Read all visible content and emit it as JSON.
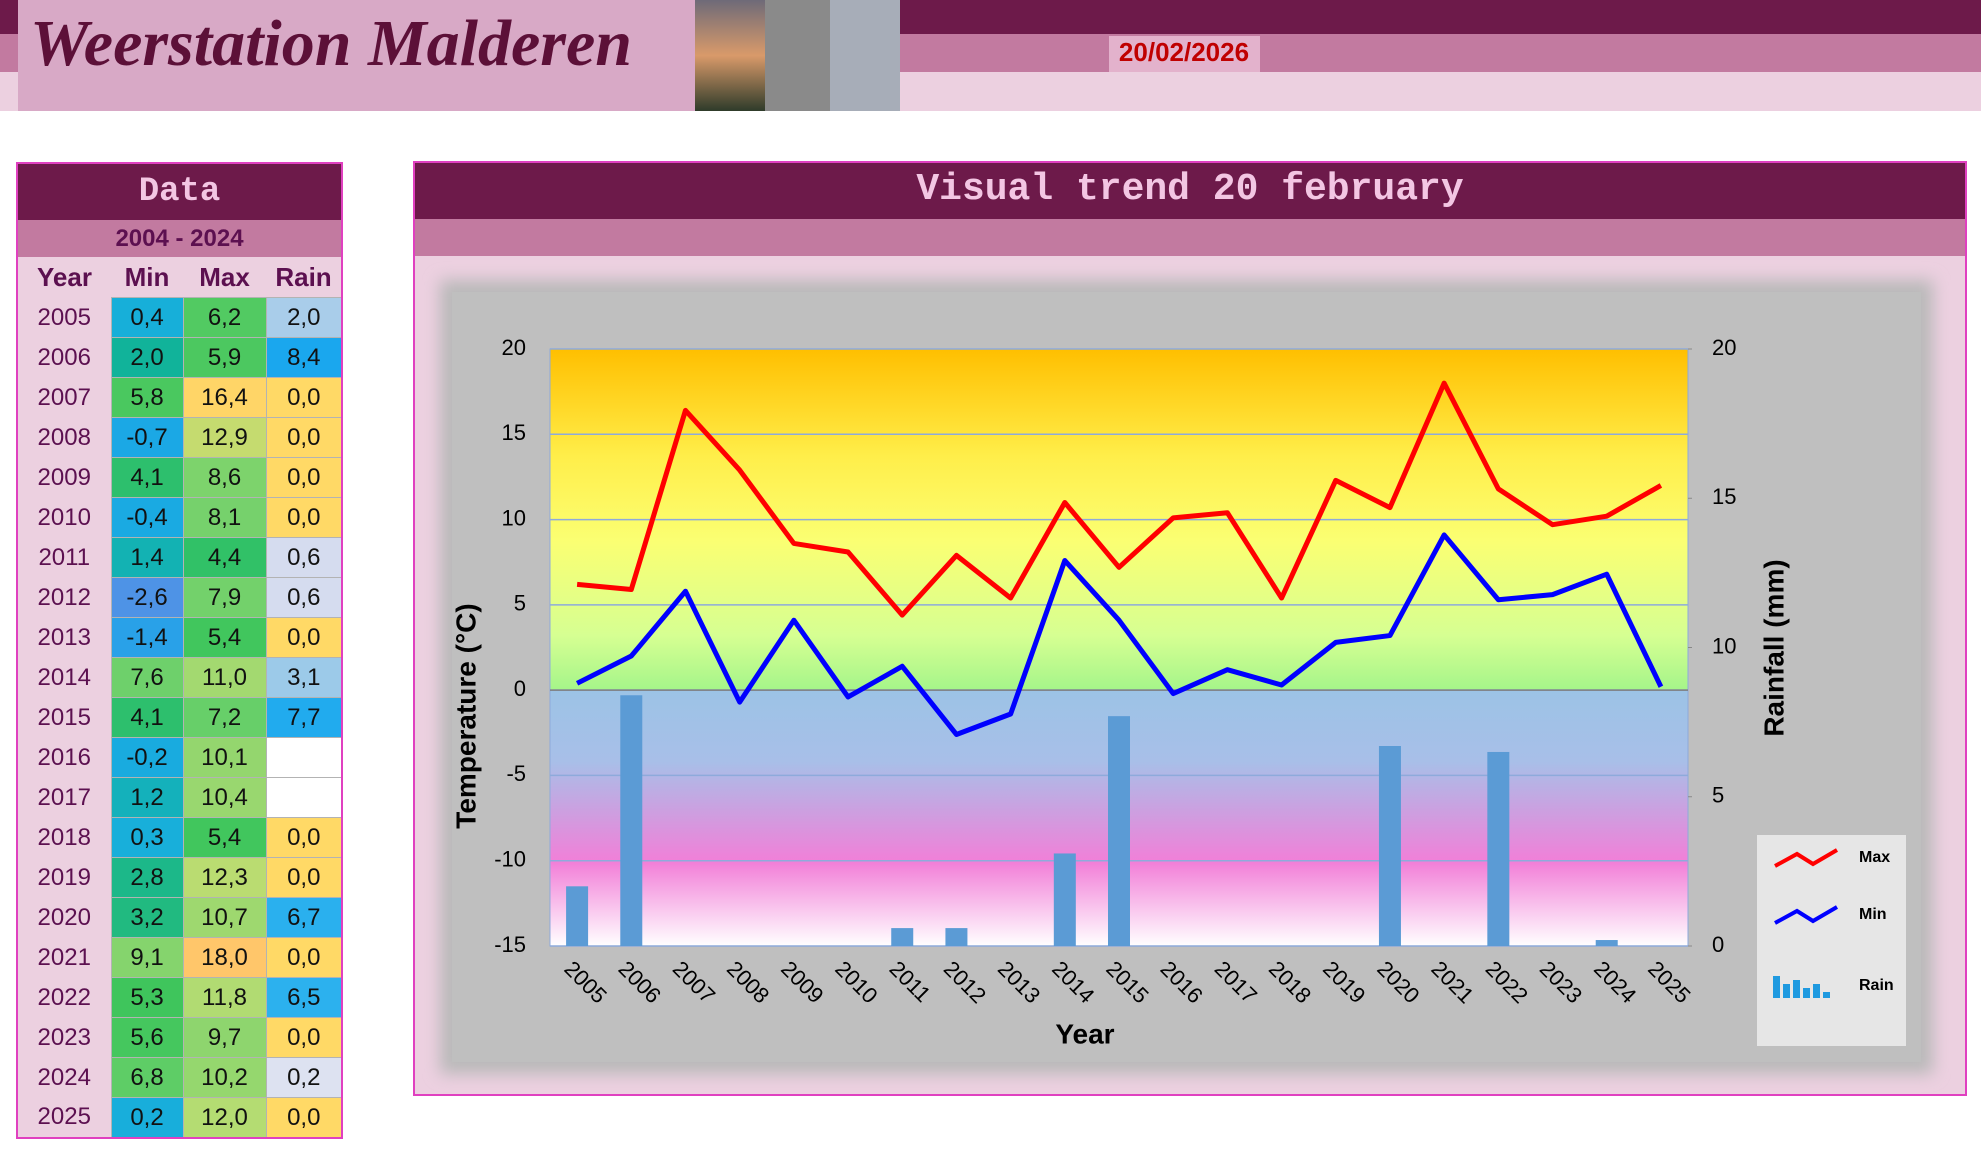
{
  "header": {
    "title": "Weerstation Malderen",
    "date": "20/02/2026"
  },
  "table": {
    "title": "Data",
    "period": "2004 - 2024",
    "columns": [
      "Year",
      "Min",
      "Max",
      "Rain"
    ],
    "rows": [
      [
        "2005",
        "0,4",
        "6,2",
        "2,0"
      ],
      [
        "2006",
        "2,0",
        "5,9",
        "8,4"
      ],
      [
        "2007",
        "5,8",
        "16,4",
        "0,0"
      ],
      [
        "2008",
        "-0,7",
        "12,9",
        "0,0"
      ],
      [
        "2009",
        "4,1",
        "8,6",
        "0,0"
      ],
      [
        "2010",
        "-0,4",
        "8,1",
        "0,0"
      ],
      [
        "2011",
        "1,4",
        "4,4",
        "0,6"
      ],
      [
        "2012",
        "-2,6",
        "7,9",
        "0,6"
      ],
      [
        "2013",
        "-1,4",
        "5,4",
        "0,0"
      ],
      [
        "2014",
        "7,6",
        "11,0",
        "3,1"
      ],
      [
        "2015",
        "4,1",
        "7,2",
        "7,7"
      ],
      [
        "2016",
        "-0,2",
        "10,1",
        null
      ],
      [
        "2017",
        "1,2",
        "10,4",
        null
      ],
      [
        "2018",
        "0,3",
        "5,4",
        "0,0"
      ],
      [
        "2019",
        "2,8",
        "12,3",
        "0,0"
      ],
      [
        "2020",
        "3,2",
        "10,7",
        "6,7"
      ],
      [
        "2021",
        "9,1",
        "18,0",
        "0,0"
      ],
      [
        "2022",
        "5,3",
        "11,8",
        "6,5"
      ],
      [
        "2023",
        "5,6",
        "9,7",
        "0,0"
      ],
      [
        "2024",
        "6,8",
        "10,2",
        "0,2"
      ],
      [
        "2025",
        "0,2",
        "12,0",
        "0,0"
      ]
    ]
  },
  "chart_data": {
    "type": "line",
    "title": "Visual trend 20 february",
    "x_label": "Year",
    "y_label": "Temperature (°C)",
    "y2_label": "Rainfall (mm)",
    "categories": [
      "2005",
      "2006",
      "2007",
      "2008",
      "2009",
      "2010",
      "2011",
      "2012",
      "2013",
      "2014",
      "2015",
      "2016",
      "2017",
      "2018",
      "2019",
      "2020",
      "2021",
      "2022",
      "2023",
      "2024",
      "2025"
    ],
    "series": [
      {
        "name": "Max",
        "color": "#ff0000",
        "values": [
          6.2,
          5.9,
          16.4,
          12.9,
          8.6,
          8.1,
          4.4,
          7.9,
          5.4,
          11.0,
          7.2,
          10.1,
          10.4,
          5.4,
          12.3,
          10.7,
          18.0,
          11.8,
          9.7,
          10.2,
          12.0
        ]
      },
      {
        "name": "Min",
        "color": "#0000ff",
        "values": [
          0.4,
          2.0,
          5.8,
          -0.7,
          4.1,
          -0.4,
          1.4,
          -2.6,
          -1.4,
          7.6,
          4.1,
          -0.2,
          1.2,
          0.3,
          2.8,
          3.2,
          9.1,
          5.3,
          5.6,
          6.8,
          0.2
        ]
      },
      {
        "name": "Rain",
        "type": "bar",
        "axis": "y2",
        "color": "#5b9bd5",
        "values": [
          2.0,
          8.4,
          0,
          0,
          0,
          0,
          0.6,
          0.6,
          0,
          3.1,
          7.7,
          null,
          null,
          0,
          0,
          6.7,
          0,
          6.5,
          0,
          0.2,
          0
        ]
      }
    ],
    "ylim": [
      -15,
      20
    ],
    "yticks": [
      -15,
      -10,
      -5,
      0,
      5,
      10,
      15,
      20
    ],
    "y2lim": [
      0,
      20
    ],
    "y2ticks": [
      0,
      5,
      10,
      15,
      20
    ],
    "grid": true,
    "legend": "right"
  }
}
